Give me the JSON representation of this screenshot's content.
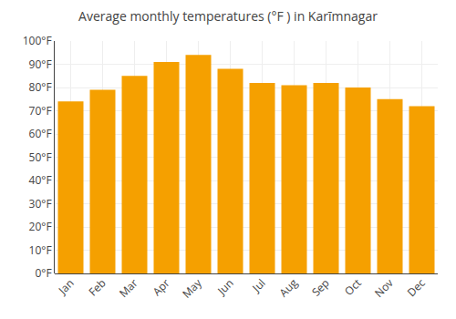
{
  "chart_data": {
    "type": "bar",
    "title": "Average monthly temperatures (°F ) in Karīmnagar",
    "categories": [
      "Jan",
      "Feb",
      "Mar",
      "Apr",
      "May",
      "Jun",
      "Jul",
      "Aug",
      "Sep",
      "Oct",
      "Nov",
      "Dec"
    ],
    "values": [
      74,
      79,
      85,
      91,
      94,
      88,
      82,
      81,
      82,
      80,
      75,
      72
    ],
    "color": "#F5A000",
    "ylim": [
      0,
      100
    ],
    "yticks": [
      {
        "value": 0,
        "label": "0°F"
      },
      {
        "value": 10,
        "label": "10°F"
      },
      {
        "value": 20,
        "label": "20°F"
      },
      {
        "value": 30,
        "label": "30°F"
      },
      {
        "value": 40,
        "label": "40°F"
      },
      {
        "value": 50,
        "label": "50°F"
      },
      {
        "value": 60,
        "label": "60°F"
      },
      {
        "value": 70,
        "label": "70°F"
      },
      {
        "value": 80,
        "label": "80°F"
      },
      {
        "value": 90,
        "label": "90°F"
      },
      {
        "value": 100,
        "label": "100°F"
      }
    ],
    "grid": true
  }
}
